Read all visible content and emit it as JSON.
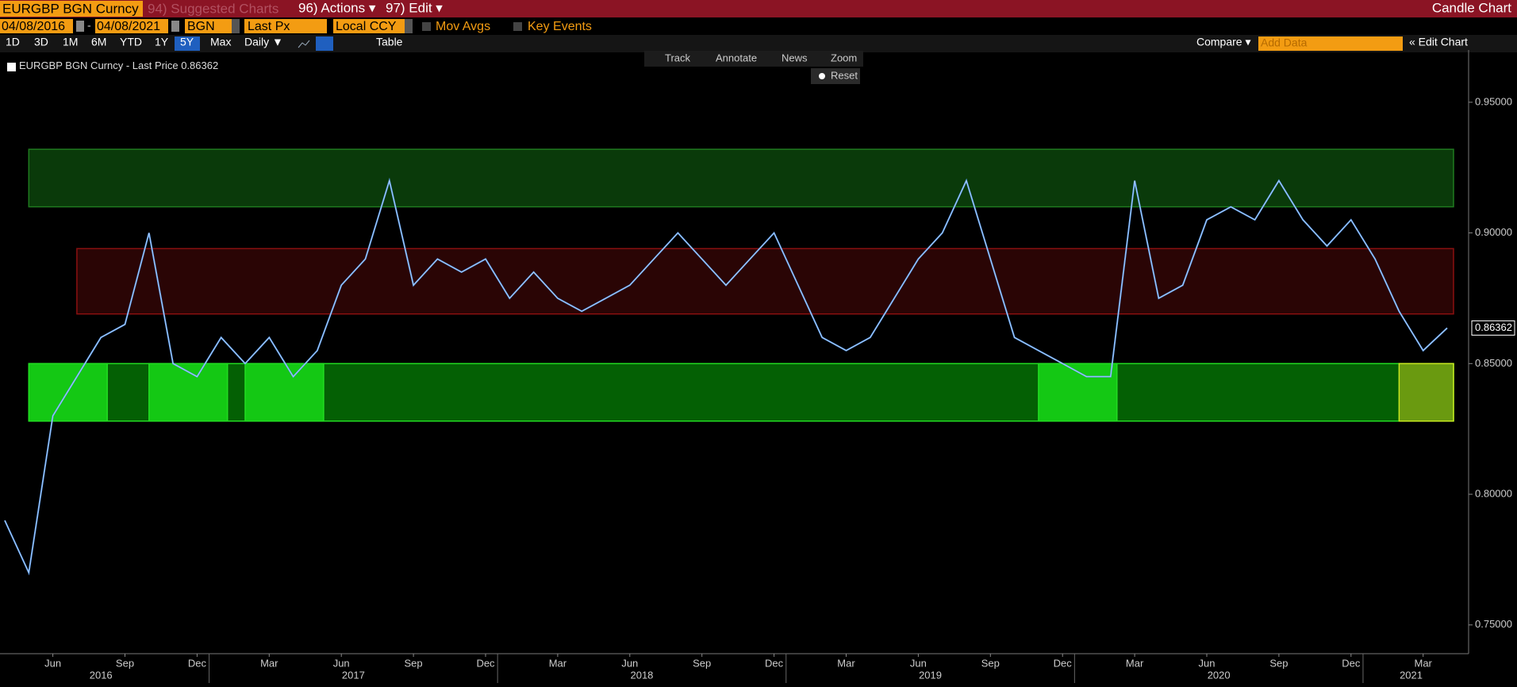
{
  "header": {
    "security": "EURGBP BGN Curncy",
    "suggested": "94) Suggested Charts",
    "actions": "96) Actions ▾",
    "edit": "97) Edit ▾",
    "view": "Candle Chart"
  },
  "controls": {
    "start_date": "04/08/2016",
    "separator": "-",
    "end_date": "04/08/2021",
    "source": "BGN",
    "field": "Last Px",
    "currency": "Local CCY",
    "mov_avgs": "Mov Avgs",
    "key_events": "Key Events"
  },
  "ranges": [
    "1D",
    "3D",
    "1M",
    "6M",
    "YTD",
    "1Y",
    "5Y",
    "Max"
  ],
  "toolbar": {
    "period": "Daily ▼",
    "table": "Table",
    "compare": "Compare ▾",
    "add_data": "Add Data",
    "edit_chart": "« Edit Chart"
  },
  "chart_tools": [
    "Track",
    "Annotate",
    "News",
    "Zoom"
  ],
  "reset": "Reset",
  "chart_data": {
    "type": "line",
    "x": [
      "2016-04",
      "2016-05",
      "2016-06",
      "2016-07",
      "2016-08",
      "2016-09",
      "2016-10",
      "2016-11",
      "2016-12",
      "2017-01",
      "2017-02",
      "2017-03",
      "2017-04",
      "2017-05",
      "2017-06",
      "2017-07",
      "2017-08",
      "2017-09",
      "2017-10",
      "2017-11",
      "2017-12",
      "2018-01",
      "2018-02",
      "2018-03",
      "2018-04",
      "2018-05",
      "2018-06",
      "2018-07",
      "2018-08",
      "2018-09",
      "2018-10",
      "2018-11",
      "2018-12",
      "2019-01",
      "2019-02",
      "2019-03",
      "2019-04",
      "2019-05",
      "2019-06",
      "2019-07",
      "2019-08",
      "2019-09",
      "2019-10",
      "2019-11",
      "2019-12",
      "2020-01",
      "2020-02",
      "2020-03",
      "2020-04",
      "2020-05",
      "2020-06",
      "2020-07",
      "2020-08",
      "2020-09",
      "2020-10",
      "2020-11",
      "2020-12",
      "2021-01",
      "2021-02",
      "2021-03",
      "2021-04"
    ],
    "series": [
      {
        "name": "EURGBP BGN Curncy - Last Price",
        "color": "#5b9df0",
        "values": [
          0.79,
          0.77,
          0.83,
          0.845,
          0.86,
          0.865,
          0.9,
          0.85,
          0.845,
          0.86,
          0.85,
          0.86,
          0.845,
          0.855,
          0.88,
          0.89,
          0.92,
          0.88,
          0.89,
          0.885,
          0.89,
          0.875,
          0.885,
          0.875,
          0.87,
          0.875,
          0.88,
          0.89,
          0.9,
          0.89,
          0.88,
          0.89,
          0.9,
          0.88,
          0.86,
          0.855,
          0.86,
          0.875,
          0.89,
          0.9,
          0.92,
          0.89,
          0.86,
          0.855,
          0.85,
          0.845,
          0.845,
          0.92,
          0.875,
          0.88,
          0.905,
          0.91,
          0.905,
          0.92,
          0.905,
          0.895,
          0.905,
          0.89,
          0.87,
          0.855,
          0.86362
        ]
      }
    ],
    "xlim": [
      "2016-04",
      "2021-04"
    ],
    "xticks": [
      {
        "value": "2016-06",
        "label": "Jun"
      },
      {
        "value": "2016-09",
        "label": "Sep"
      },
      {
        "value": "2016-12",
        "label": "Dec"
      },
      {
        "value": "2017-03",
        "label": "Mar"
      },
      {
        "value": "2017-06",
        "label": "Jun"
      },
      {
        "value": "2017-09",
        "label": "Sep"
      },
      {
        "value": "2017-12",
        "label": "Dec"
      },
      {
        "value": "2018-03",
        "label": "Mar"
      },
      {
        "value": "2018-06",
        "label": "Jun"
      },
      {
        "value": "2018-09",
        "label": "Sep"
      },
      {
        "value": "2018-12",
        "label": "Dec"
      },
      {
        "value": "2019-03",
        "label": "Mar"
      },
      {
        "value": "2019-06",
        "label": "Jun"
      },
      {
        "value": "2019-09",
        "label": "Sep"
      },
      {
        "value": "2019-12",
        "label": "Dec"
      },
      {
        "value": "2020-03",
        "label": "Mar"
      },
      {
        "value": "2020-06",
        "label": "Jun"
      },
      {
        "value": "2020-09",
        "label": "Sep"
      },
      {
        "value": "2020-12",
        "label": "Dec"
      },
      {
        "value": "2021-03",
        "label": "Mar"
      }
    ],
    "year_labels": [
      2016,
      2017,
      2018,
      2019,
      2020,
      2021
    ],
    "ylim": [
      0.739,
      0.97
    ],
    "yticks": [
      {
        "value": 0.75,
        "label": "0.75000"
      },
      {
        "value": 0.8,
        "label": "0.80000"
      },
      {
        "value": 0.85,
        "label": "0.85000"
      },
      {
        "value": 0.9,
        "label": "0.90000"
      },
      {
        "value": 0.95,
        "label": "0.95000"
      }
    ],
    "bands": [
      {
        "ylow": 0.91,
        "yhigh": 0.932,
        "from": "2016-05",
        "to": "2021-04",
        "fill": "#0a3a0a",
        "stroke": "#1f7a1f"
      },
      {
        "ylow": 0.869,
        "yhigh": 0.894,
        "from": "2016-07",
        "to": "2021-04",
        "fill": "#2a0505",
        "stroke": "#8a1010"
      },
      {
        "ylow": 0.828,
        "yhigh": 0.85,
        "from": "2016-05",
        "to": "2021-04",
        "fill": "#046004",
        "stroke": "#22dd22"
      },
      {
        "ylow": 0.828,
        "yhigh": 0.85,
        "from": "2016-05",
        "to": "2016-08",
        "fill": "#14c814",
        "stroke": "#22dd22"
      },
      {
        "ylow": 0.828,
        "yhigh": 0.85,
        "from": "2016-10",
        "to": "2017-01",
        "fill": "#14c814",
        "stroke": "#22dd22"
      },
      {
        "ylow": 0.828,
        "yhigh": 0.85,
        "from": "2017-02",
        "to": "2017-05",
        "fill": "#14c814",
        "stroke": "#22dd22"
      },
      {
        "ylow": 0.828,
        "yhigh": 0.85,
        "from": "2019-11",
        "to": "2020-02",
        "fill": "#14c814",
        "stroke": "#22dd22"
      },
      {
        "ylow": 0.828,
        "yhigh": 0.85,
        "from": "2021-02",
        "to": "2021-04",
        "fill": "#6a9a10",
        "stroke": "#c8e820"
      }
    ]
  }
}
